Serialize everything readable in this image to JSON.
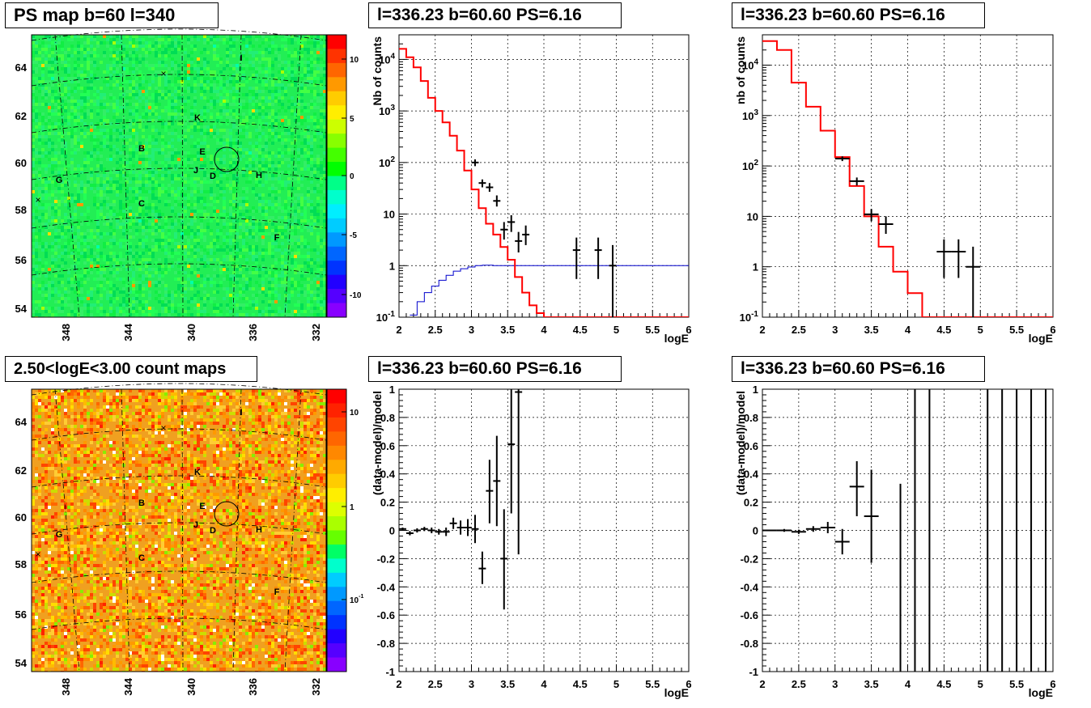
{
  "panels": {
    "map_top": {
      "title": "PS map b=60 l=340",
      "x_ticks": [
        "348",
        "344",
        "340",
        "336",
        "332"
      ],
      "y_ticks": [
        "64",
        "62",
        "60",
        "58",
        "56",
        "54"
      ],
      "colorbar_ticks": [
        "10",
        "5",
        "0",
        "-5",
        "-10"
      ],
      "sources": [
        "I",
        "K",
        "B",
        "E",
        "J",
        "D",
        "H",
        "G",
        "C",
        "F"
      ]
    },
    "map_bottom": {
      "title": "2.50<logE<3.00 count maps",
      "x_ticks": [
        "348",
        "344",
        "340",
        "336",
        "332"
      ],
      "y_ticks": [
        "64",
        "62",
        "60",
        "58",
        "56",
        "54"
      ],
      "colorbar_ticks": [
        "10",
        "1",
        "10^-1"
      ],
      "sources": [
        "I",
        "K",
        "B",
        "E",
        "J",
        "D",
        "H",
        "G",
        "C",
        "F"
      ]
    },
    "spec_mid": {
      "title": "l=336.23 b=60.60 PS=6.16"
    },
    "spec_right": {
      "title": "l=336.23 b=60.60 PS=6.16"
    },
    "res_mid": {
      "title": "l=336.23 b=60.60 PS=6.16"
    },
    "res_right": {
      "title": "l=336.23 b=60.60 PS=6.16"
    }
  },
  "colors": {
    "model": "#ff0000",
    "exposure": "#0000cc",
    "data": "#000000",
    "map_top_base": "#22ee55",
    "map_bottom_base": "#f0a020"
  },
  "chart_data": [
    {
      "type": "line",
      "id": "spec_mid",
      "title": "l=336.23 b=60.60 PS=6.16",
      "xlabel": "logE",
      "ylabel": "Nb of counts",
      "yscale": "log",
      "xlim": [
        2,
        6
      ],
      "ylim": [
        0.1,
        30000
      ],
      "x_ticks": [
        "2",
        "2.5",
        "3",
        "3.5",
        "4",
        "4.5",
        "5",
        "5.5",
        "6"
      ],
      "y_ticks": [
        "10^-1",
        "1",
        "10",
        "10^2",
        "10^3",
        "10^4"
      ],
      "model_steps": {
        "edges": [
          2.0,
          2.1,
          2.2,
          2.3,
          2.4,
          2.5,
          2.6,
          2.7,
          2.8,
          2.9,
          3.0,
          3.1,
          3.2,
          3.3,
          3.4,
          3.5,
          3.6,
          3.7,
          3.8,
          3.9,
          4.0,
          6.0
        ],
        "values": [
          16000,
          11000,
          7000,
          3800,
          1800,
          1000,
          600,
          330,
          170,
          70,
          30,
          13,
          6.5,
          4,
          2.3,
          1.3,
          0.6,
          0.3,
          0.17,
          0.12,
          0.1
        ]
      },
      "exposure_steps": {
        "edges": [
          2.15,
          2.25,
          2.35,
          2.45,
          2.55,
          2.65,
          2.75,
          2.85,
          2.95,
          3.05,
          3.15,
          3.3,
          6.0
        ],
        "values": [
          0.11,
          0.2,
          0.3,
          0.4,
          0.52,
          0.65,
          0.78,
          0.87,
          0.94,
          1.0,
          1.02,
          1.0
        ]
      },
      "points": [
        {
          "x": 3.05,
          "y": 100,
          "dx": 0.05,
          "ylo": 85,
          "yhi": 115
        },
        {
          "x": 3.15,
          "y": 40,
          "dx": 0.05,
          "ylo": 33,
          "yhi": 47
        },
        {
          "x": 3.25,
          "y": 33,
          "dx": 0.05,
          "ylo": 27,
          "yhi": 40
        },
        {
          "x": 3.35,
          "y": 18,
          "dx": 0.05,
          "ylo": 14,
          "yhi": 23
        },
        {
          "x": 3.45,
          "y": 5,
          "dx": 0.05,
          "ylo": 3.2,
          "yhi": 7
        },
        {
          "x": 3.55,
          "y": 7,
          "dx": 0.05,
          "ylo": 4.5,
          "yhi": 9.5
        },
        {
          "x": 3.65,
          "y": 3,
          "dx": 0.05,
          "ylo": 1.8,
          "yhi": 4.5
        },
        {
          "x": 3.75,
          "y": 4,
          "dx": 0.05,
          "ylo": 2.5,
          "yhi": 6
        },
        {
          "x": 4.45,
          "y": 2,
          "dx": 0.05,
          "ylo": 0.55,
          "yhi": 3.5
        },
        {
          "x": 4.75,
          "y": 2,
          "dx": 0.05,
          "ylo": 0.55,
          "yhi": 3.5
        },
        {
          "x": 4.95,
          "y": 1,
          "dx": 0.05,
          "ylo": 0.1,
          "yhi": 2.5
        }
      ]
    },
    {
      "type": "line",
      "id": "spec_right",
      "title": "l=336.23 b=60.60 PS=6.16",
      "xlabel": "logE",
      "ylabel": "nb of counts",
      "yscale": "log",
      "xlim": [
        2,
        6
      ],
      "ylim": [
        0.1,
        40000
      ],
      "x_ticks": [
        "2",
        "2.5",
        "3",
        "3.5",
        "4",
        "4.5",
        "5",
        "5.5",
        "6"
      ],
      "y_ticks": [
        "10^-1",
        "1",
        "10",
        "10^2",
        "10^3",
        "10^4"
      ],
      "model_steps": {
        "edges": [
          2.0,
          2.2,
          2.4,
          2.6,
          2.8,
          3.0,
          3.2,
          3.4,
          3.6,
          3.8,
          4.0,
          4.2,
          6.0
        ],
        "values": [
          30000,
          20000,
          4500,
          1500,
          500,
          150,
          40,
          10,
          2.5,
          0.8,
          0.3,
          0.1
        ]
      },
      "points": [
        {
          "x": 3.1,
          "y": 140,
          "dx": 0.1,
          "ylo": 125,
          "yhi": 155
        },
        {
          "x": 3.3,
          "y": 50,
          "dx": 0.1,
          "ylo": 41,
          "yhi": 59
        },
        {
          "x": 3.5,
          "y": 11,
          "dx": 0.1,
          "ylo": 8,
          "yhi": 14
        },
        {
          "x": 3.7,
          "y": 7,
          "dx": 0.1,
          "ylo": 4.5,
          "yhi": 10
        },
        {
          "x": 4.5,
          "y": 2,
          "dx": 0.1,
          "ylo": 0.6,
          "yhi": 3.5
        },
        {
          "x": 4.7,
          "y": 2,
          "dx": 0.1,
          "ylo": 0.6,
          "yhi": 3.5
        },
        {
          "x": 4.9,
          "y": 1,
          "dx": 0.1,
          "ylo": 0.1,
          "yhi": 2.5
        }
      ]
    },
    {
      "type": "scatter",
      "id": "res_mid",
      "title": "l=336.23 b=60.60 PS=6.16",
      "xlabel": "logE",
      "ylabel": "(data-model)/model",
      "xlim": [
        2,
        6
      ],
      "ylim": [
        -1,
        1
      ],
      "x_ticks": [
        "2",
        "2.5",
        "3",
        "3.5",
        "4",
        "4.5",
        "5",
        "5.5",
        "6"
      ],
      "y_ticks": [
        "-1",
        "-0.8",
        "-0.6",
        "-0.4",
        "-0.2",
        "0",
        "0.2",
        "0.4",
        "0.6",
        "0.8",
        "1"
      ],
      "points": [
        {
          "x": 2.05,
          "y": 0.01,
          "dx": 0.05,
          "ylo": 0.0,
          "yhi": 0.02
        },
        {
          "x": 2.15,
          "y": -0.02,
          "dx": 0.05,
          "ylo": -0.035,
          "yhi": -0.005
        },
        {
          "x": 2.25,
          "y": 0.0,
          "dx": 0.05,
          "ylo": -0.015,
          "yhi": 0.015
        },
        {
          "x": 2.35,
          "y": 0.01,
          "dx": 0.05,
          "ylo": -0.005,
          "yhi": 0.025
        },
        {
          "x": 2.45,
          "y": 0.0,
          "dx": 0.05,
          "ylo": -0.02,
          "yhi": 0.02
        },
        {
          "x": 2.55,
          "y": -0.01,
          "dx": 0.05,
          "ylo": -0.03,
          "yhi": 0.01
        },
        {
          "x": 2.65,
          "y": -0.01,
          "dx": 0.05,
          "ylo": -0.04,
          "yhi": 0.02
        },
        {
          "x": 2.75,
          "y": 0.05,
          "dx": 0.05,
          "ylo": 0.01,
          "yhi": 0.09
        },
        {
          "x": 2.85,
          "y": 0.02,
          "dx": 0.05,
          "ylo": -0.03,
          "yhi": 0.07
        },
        {
          "x": 2.95,
          "y": 0.02,
          "dx": 0.05,
          "ylo": -0.04,
          "yhi": 0.08
        },
        {
          "x": 3.05,
          "y": 0.01,
          "dx": 0.05,
          "ylo": -0.09,
          "yhi": 0.11
        },
        {
          "x": 3.15,
          "y": -0.27,
          "dx": 0.05,
          "ylo": -0.38,
          "yhi": -0.15
        },
        {
          "x": 3.25,
          "y": 0.28,
          "dx": 0.05,
          "ylo": 0.05,
          "yhi": 0.5
        },
        {
          "x": 3.35,
          "y": 0.35,
          "dx": 0.05,
          "ylo": 0.03,
          "yhi": 0.67
        },
        {
          "x": 3.45,
          "y": -0.2,
          "dx": 0.05,
          "ylo": -0.56,
          "yhi": 0.15
        },
        {
          "x": 3.55,
          "y": 0.61,
          "dx": 0.05,
          "ylo": 0.12,
          "yhi": 1.0
        },
        {
          "x": 3.65,
          "y": 0.98,
          "dx": 0.05,
          "ylo": -0.17,
          "yhi": 1.0
        }
      ]
    },
    {
      "type": "scatter",
      "id": "res_right",
      "title": "l=336.23 b=60.60 PS=6.16",
      "xlabel": "logE",
      "ylabel": "(data-model)/model",
      "xlim": [
        2,
        6
      ],
      "ylim": [
        -1,
        1
      ],
      "x_ticks": [
        "2",
        "2.5",
        "3",
        "3.5",
        "4",
        "4.5",
        "5",
        "5.5",
        "6"
      ],
      "y_ticks": [
        "-1",
        "-0.8",
        "-0.6",
        "-0.4",
        "-0.2",
        "0",
        "0.2",
        "0.4",
        "0.6",
        "0.8",
        "1"
      ],
      "points": [
        {
          "x": 2.1,
          "y": 0.0,
          "dx": 0.1,
          "ylo": -0.005,
          "yhi": 0.005
        },
        {
          "x": 2.3,
          "y": 0.0,
          "dx": 0.1,
          "ylo": -0.01,
          "yhi": 0.01
        },
        {
          "x": 2.5,
          "y": -0.01,
          "dx": 0.1,
          "ylo": -0.025,
          "yhi": 0.005
        },
        {
          "x": 2.7,
          "y": 0.01,
          "dx": 0.1,
          "ylo": -0.01,
          "yhi": 0.03
        },
        {
          "x": 2.9,
          "y": 0.02,
          "dx": 0.1,
          "ylo": -0.02,
          "yhi": 0.06
        },
        {
          "x": 3.1,
          "y": -0.08,
          "dx": 0.1,
          "ylo": -0.17,
          "yhi": 0.01
        },
        {
          "x": 3.3,
          "y": 0.31,
          "dx": 0.1,
          "ylo": 0.1,
          "yhi": 0.49
        },
        {
          "x": 3.5,
          "y": 0.1,
          "dx": 0.1,
          "ylo": -0.23,
          "yhi": 0.43
        },
        {
          "x": 3.9,
          "y": -1.0,
          "dx": 0.0,
          "ylo": -1.0,
          "yhi": 0.33
        },
        {
          "x": 4.1,
          "y": 0.0,
          "dx": 0.0,
          "ylo": -1.0,
          "yhi": 1.0
        },
        {
          "x": 4.3,
          "y": 0.0,
          "dx": 0.0,
          "ylo": -1.0,
          "yhi": 1.0
        },
        {
          "x": 5.1,
          "y": 0.0,
          "dx": 0.0,
          "ylo": -1.0,
          "yhi": 1.0
        },
        {
          "x": 5.3,
          "y": 0.0,
          "dx": 0.0,
          "ylo": -1.0,
          "yhi": 1.0
        },
        {
          "x": 5.5,
          "y": 0.0,
          "dx": 0.0,
          "ylo": -1.0,
          "yhi": 1.0
        },
        {
          "x": 5.7,
          "y": 0.0,
          "dx": 0.0,
          "ylo": -1.0,
          "yhi": 1.0
        },
        {
          "x": 5.9,
          "y": 0.0,
          "dx": 0.0,
          "ylo": -1.0,
          "yhi": 1.0
        }
      ]
    }
  ]
}
